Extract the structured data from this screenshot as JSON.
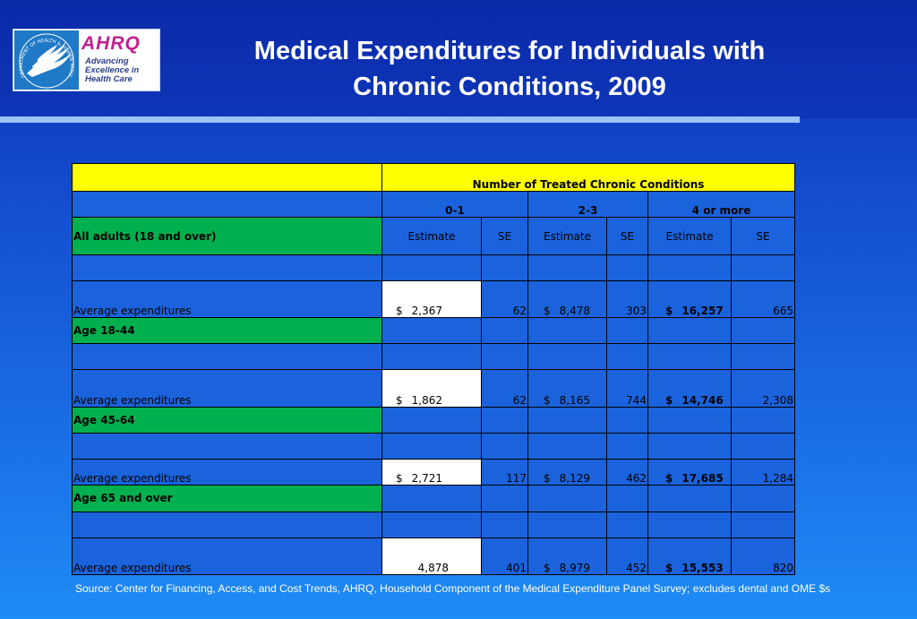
{
  "logo": {
    "hhs_seal_text": "DEPARTMENT OF HEALTH & HUMAN SERVICES · USA",
    "ahrq_mark": "AHRQ",
    "ahrq_tagline": [
      "Advancing",
      "Excellence in",
      "Health Care"
    ]
  },
  "title": {
    "line1": "Medical Expenditures for Individuals with",
    "line2": "Chronic Conditions, 2009"
  },
  "table": {
    "group_header": "Number of Treated Chronic Conditions",
    "column_groups": [
      "0-1",
      "2-3",
      "4 or more"
    ],
    "subheaders": [
      "Estimate",
      "SE",
      "Estimate",
      "SE",
      "Estimate",
      "SE"
    ],
    "sections": [
      {
        "label": "All adults (18 and over)",
        "row_label": "Average expenditures",
        "values": {
          "e1_symbol": "$",
          "e1": "2,367",
          "se1": "62",
          "e2_symbol": "$",
          "e2": "8,478",
          "se2": "303",
          "e3_symbol": "$",
          "e3": "16,257",
          "se3": "665"
        }
      },
      {
        "label": "Age 18-44",
        "row_label": "Average expenditures",
        "values": {
          "e1_symbol": "$",
          "e1": "1,862",
          "se1": "62",
          "e2_symbol": "$",
          "e2": "8,165",
          "se2": "744",
          "e3_symbol": "$",
          "e3": "14,746",
          "se3": "2,308"
        }
      },
      {
        "label": "Age 45-64",
        "row_label": "Average expenditures",
        "values": {
          "e1_symbol": "$",
          "e1": "2,721",
          "se1": "117",
          "e2_symbol": "$",
          "e2": "8,129",
          "se2": "462",
          "e3_symbol": "$",
          "e3": "17,685",
          "se3": "1,284"
        }
      },
      {
        "label": "Age 65 and over",
        "row_label": "Average expenditures",
        "values": {
          "e1_symbol": "",
          "e1": "4,878",
          "se1": "401",
          "e2_symbol": "$",
          "e2": "8,979",
          "se2": "452",
          "e3_symbol": "$",
          "e3": "15,553",
          "se3": "820"
        }
      }
    ]
  },
  "source": "Source: Center for Financing, Access, and Cost Trends, AHRQ, Household Component of the Medical Expenditure Panel Survey; excludes dental and OME $s",
  "colors": {
    "header_yellow": "#ffff00",
    "section_green": "#00b04f",
    "cell_blue": "#1a63dc",
    "background_top": "#0a2fb0",
    "background_bottom": "#1e8cf5"
  }
}
